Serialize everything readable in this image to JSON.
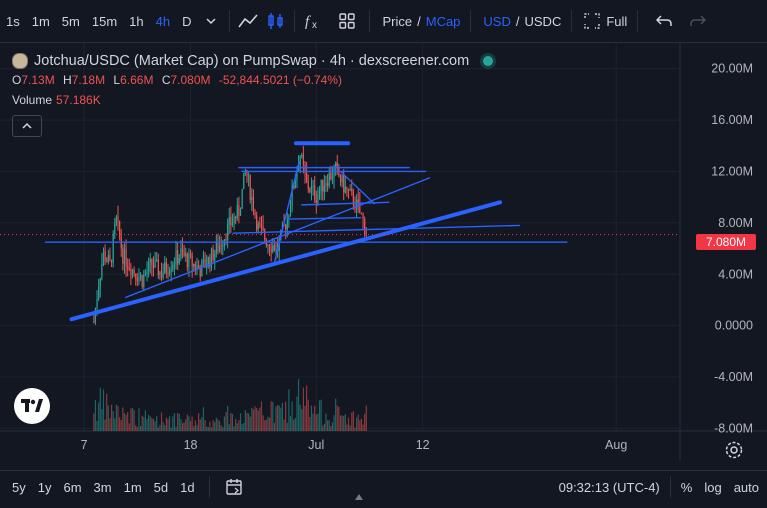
{
  "toolbar": {
    "intervals": [
      {
        "label": "1s",
        "active": false
      },
      {
        "label": "1m",
        "active": false
      },
      {
        "label": "5m",
        "active": false
      },
      {
        "label": "15m",
        "active": false
      },
      {
        "label": "1h",
        "active": false
      },
      {
        "label": "4h",
        "active": true
      },
      {
        "label": "D",
        "active": false
      }
    ],
    "price_label": "Price",
    "mcap_label": "MCap",
    "usd_label": "USD",
    "usdc_label": "USDC",
    "full_label": "Full",
    "slash": "/"
  },
  "legend": {
    "title": "Jotchua/USDC (Market Cap) on PumpSwap · 4h · dexscreener.com",
    "o_label": "O",
    "o_value": "7.13M",
    "h_label": "H",
    "h_value": "7.18M",
    "l_label": "L",
    "l_value": "6.66M",
    "c_label": "C",
    "c_value": "7.080M",
    "change": "-52,844.5021 (−0.74%)",
    "volume_label": "Volume",
    "volume_value": "57.186K"
  },
  "price_tag": "7.080M",
  "colors": {
    "background": "#131722",
    "up": "#26a69a",
    "down": "#ef5350",
    "drawing": "#2962ff",
    "accent": "#2962ff"
  },
  "chart_data": {
    "type": "candlestick",
    "title": "Jotchua/USDC (Market Cap) on PumpSwap · 4h · dexscreener.com",
    "y_ticks": [
      "20.00M",
      "16.00M",
      "12.00M",
      "8.00M",
      "4.00M",
      "0.0000",
      "-4.00M",
      "-8.00M"
    ],
    "y_tick_values": [
      20,
      16,
      12,
      8,
      4,
      0,
      -4,
      -8
    ],
    "ylim": [
      -8.2,
      22
    ],
    "x_ticks": [
      "7",
      "18",
      "Jul",
      "12",
      "Aug"
    ],
    "x_tick_days": [
      7,
      18,
      31,
      42,
      62
    ],
    "xlim": [
      -1.7,
      68.6
    ],
    "last_price": 7.08,
    "last_price_label": "7.080M",
    "candles_per_day": 6,
    "close_path": [
      [
        8.0,
        0.3
      ],
      [
        8.5,
        3.4
      ],
      [
        9.0,
        5.6
      ],
      [
        9.7,
        4.7
      ],
      [
        10.3,
        8.3
      ],
      [
        11.0,
        5.5
      ],
      [
        12.0,
        4.4
      ],
      [
        13.0,
        3.6
      ],
      [
        14.0,
        4.8
      ],
      [
        15.0,
        4.1
      ],
      [
        16.0,
        4.9
      ],
      [
        17.0,
        5.6
      ],
      [
        18.0,
        4.9
      ],
      [
        19.0,
        4.4
      ],
      [
        20.0,
        5.2
      ],
      [
        21.0,
        6.3
      ],
      [
        22.0,
        7.8
      ],
      [
        23.0,
        8.9
      ],
      [
        23.7,
        12.1
      ],
      [
        24.3,
        10.0
      ],
      [
        25.0,
        7.6
      ],
      [
        26.0,
        6.5
      ],
      [
        27.0,
        6.0
      ],
      [
        28.0,
        8.4
      ],
      [
        28.7,
        11.1
      ],
      [
        29.3,
        13.4
      ],
      [
        30.0,
        11.0
      ],
      [
        31.0,
        10.1
      ],
      [
        32.0,
        11.4
      ],
      [
        33.0,
        12.1
      ],
      [
        34.0,
        10.6
      ],
      [
        35.0,
        9.6
      ],
      [
        35.8,
        8.2
      ],
      [
        36.2,
        7.1
      ]
    ],
    "volume_series": {
      "name": "Volume",
      "profile": [
        [
          8.0,
          0.7
        ],
        [
          11.0,
          0.4
        ],
        [
          14.0,
          0.3
        ],
        [
          20.0,
          0.22
        ],
        [
          24.0,
          0.35
        ],
        [
          29.0,
          0.55
        ],
        [
          33.0,
          0.4
        ],
        [
          36.2,
          0.25
        ]
      ]
    },
    "trendlines": [
      {
        "x1": 5.7,
        "y1": 0.5,
        "x2": 50.0,
        "y2": 9.6,
        "thick": true
      },
      {
        "x1": 11.3,
        "y1": 2.2,
        "x2": 42.7,
        "y2": 11.5,
        "thick": false
      },
      {
        "x1": 26.7,
        "y1": 5.0,
        "x2": 29.2,
        "y2": 12.7,
        "thick": false
      },
      {
        "x1": 23.0,
        "y1": 12.3,
        "x2": 40.6,
        "y2": 12.3,
        "thick": false
      },
      {
        "x1": 28.9,
        "y1": 14.2,
        "x2": 34.3,
        "y2": 14.2,
        "thick": true
      },
      {
        "x1": 23.3,
        "y1": 12.0,
        "x2": 42.3,
        "y2": 12.0,
        "thick": false
      },
      {
        "x1": 3.0,
        "y1": 6.5,
        "x2": 56.9,
        "y2": 6.5,
        "thick": false
      },
      {
        "x1": 22.4,
        "y1": 7.2,
        "x2": 52.0,
        "y2": 7.8,
        "thick": false
      },
      {
        "x1": 28.0,
        "y1": 8.3,
        "x2": 35.6,
        "y2": 8.4,
        "thick": false
      },
      {
        "x1": 29.5,
        "y1": 9.4,
        "x2": 38.5,
        "y2": 9.6,
        "thick": false
      },
      {
        "x1": 33.5,
        "y1": 12.0,
        "x2": 37.0,
        "y2": 9.5,
        "thick": false
      }
    ]
  },
  "bottom": {
    "ranges": [
      "5y",
      "1y",
      "6m",
      "3m",
      "1m",
      "5d",
      "1d"
    ],
    "time": "09:32:13 (UTC-4)",
    "percent": "%",
    "log": "log",
    "auto": "auto"
  },
  "icons": {
    "chevron": "chevron-down-icon",
    "indicator": "line-chart-icon",
    "candles": "candles-icon",
    "fx": "fx-icon",
    "layout": "layout-grid-icon",
    "fullscreen": "fullscreen-icon",
    "undo": "undo-icon",
    "redo": "redo-icon",
    "calendar": "calendar-icon",
    "gear": "gear-icon"
  }
}
